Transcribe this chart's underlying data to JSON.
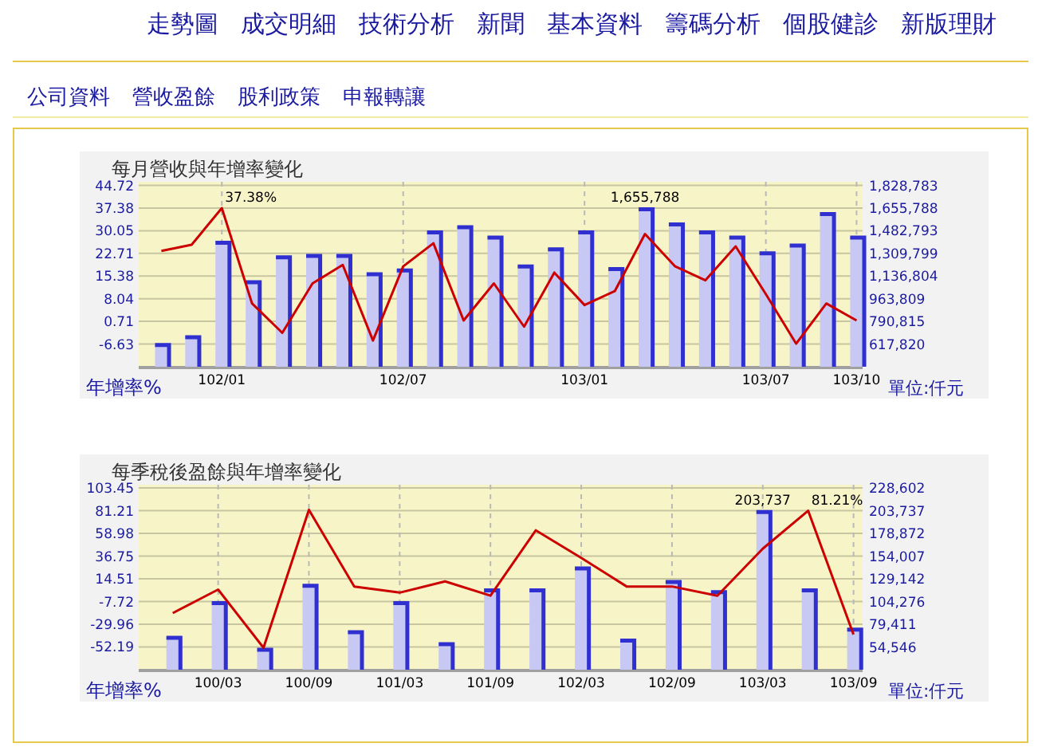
{
  "chart_data": [
    {
      "type": "other",
      "annotations": [
        "走勢圖",
        "成交明細",
        "技術分析",
        "新聞",
        "基本資料",
        "籌碼分析",
        "個股健診",
        "新版理財"
      ]
    },
    {
      "type": "other",
      "annotations": [
        "公司資料",
        "營收盈餘",
        "股利政策",
        "申報轉讓"
      ]
    },
    {
      "type": "bar",
      "title": "每月營收與年增率變化",
      "ylabel": "年增率%",
      "y2label": "單位:仟元",
      "grid": true,
      "categories": [
        null,
        null,
        "102/01",
        null,
        null,
        null,
        null,
        null,
        "102/07",
        null,
        null,
        null,
        null,
        null,
        "103/01",
        null,
        null,
        null,
        null,
        null,
        "103/07",
        null,
        null,
        "103/10"
      ],
      "ylim": [
        -13.97,
        45.9
      ],
      "yticks": [
        44.72,
        37.38,
        30.05,
        22.71,
        15.38,
        8.04,
        0.71,
        -6.63
      ],
      "y2lim": [
        444825,
        1856465
      ],
      "y2ticks": [
        {
          "value": 1828783,
          "label": "1,828,783"
        },
        {
          "value": 1655788,
          "label": "1,655,788"
        },
        {
          "value": 1482793,
          "label": "1,482,793"
        },
        {
          "value": 1309799,
          "label": "1,309,799"
        },
        {
          "value": 1136804,
          "label": "1,136,804"
        },
        {
          "value": 963809,
          "label": "963,809"
        },
        {
          "value": 790815,
          "label": "790,815"
        },
        {
          "value": 617820,
          "label": "617,820"
        }
      ],
      "series": [
        {
          "type": "bar",
          "axis": "y2",
          "color": "#c8c8f4",
          "values": [
            620000,
            680000,
            1400000,
            1100000,
            1290000,
            1300000,
            1300000,
            1160000,
            1190000,
            1480000,
            1520000,
            1440000,
            1220000,
            1350000,
            1480000,
            1200000,
            1655788,
            1540000,
            1480000,
            1440000,
            1320000,
            1380000,
            1620000,
            1440000
          ],
          "value_labels": [
            null,
            null,
            null,
            null,
            null,
            null,
            null,
            null,
            null,
            null,
            null,
            null,
            null,
            null,
            null,
            null,
            "1,655,788",
            null,
            null,
            null,
            null,
            null,
            null,
            null
          ]
        },
        {
          "type": "line",
          "color": "#cc0000",
          "values": [
            23.5,
            25.5,
            37.38,
            6.5,
            -3,
            13,
            19,
            -5.5,
            18.5,
            26,
            1,
            13,
            -1,
            16.5,
            6,
            10.5,
            29,
            18.5,
            14,
            25,
            9.5,
            -6.5,
            6.5,
            1
          ],
          "value_labels": [
            null,
            null,
            "37.38%",
            null,
            null,
            null,
            null,
            null,
            null,
            null,
            null,
            null,
            null,
            null,
            null,
            null,
            null,
            null,
            null,
            null,
            null,
            null,
            null,
            null
          ]
        }
      ]
    },
    {
      "type": "bar",
      "title": "每季稅後盈餘與年增率變化",
      "ylabel": "年增率%",
      "y2label": "單位:仟元",
      "grid": true,
      "categories": [
        null,
        "100/03",
        null,
        "100/09",
        null,
        "101/03",
        null,
        "101/09",
        null,
        "102/03",
        null,
        "102/09",
        null,
        "103/03",
        null,
        "103/09"
      ],
      "ylim": [
        -74.43,
        106.6
      ],
      "yticks": [
        103.45,
        81.21,
        58.98,
        36.75,
        14.51,
        -7.72,
        -29.96,
        -52.19
      ],
      "y2lim": [
        29681,
        232127
      ],
      "y2ticks": [
        {
          "value": 228602,
          "label": "228,602"
        },
        {
          "value": 203737,
          "label": "203,737"
        },
        {
          "value": 178872,
          "label": "178,872"
        },
        {
          "value": 154007,
          "label": "154,007"
        },
        {
          "value": 129142,
          "label": "129,142"
        },
        {
          "value": 104276,
          "label": "104,276"
        },
        {
          "value": 79411,
          "label": "79,411"
        },
        {
          "value": 54546,
          "label": "54,546"
        }
      ],
      "series": [
        {
          "type": "bar",
          "axis": "y2",
          "color": "#c8c8f4",
          "values": [
            66000,
            104000,
            53000,
            123000,
            72000,
            104000,
            59000,
            118000,
            118000,
            142000,
            63000,
            127000,
            116000,
            203737,
            118000,
            75000
          ],
          "value_labels": [
            null,
            null,
            null,
            null,
            null,
            null,
            null,
            null,
            null,
            null,
            null,
            null,
            null,
            "203,737",
            null,
            null
          ]
        },
        {
          "type": "line",
          "color": "#cc0000",
          "values": [
            -19,
            4,
            -53,
            82,
            7,
            1,
            12,
            -2,
            62,
            35,
            7,
            7,
            -2,
            44,
            81.21,
            -40
          ],
          "value_labels": [
            null,
            null,
            null,
            null,
            null,
            null,
            null,
            null,
            null,
            null,
            null,
            null,
            null,
            null,
            "81.21%",
            null
          ]
        }
      ]
    }
  ]
}
